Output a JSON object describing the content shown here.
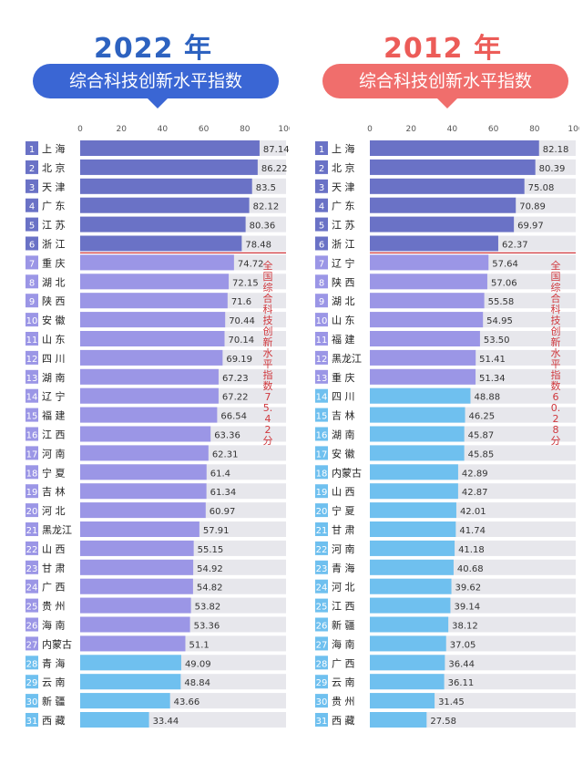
{
  "colors": {
    "blue_title": "#2d62c0",
    "blue_badge": "#3a66d4",
    "red_title": "#ec5c58",
    "red_badge": "#f06e6c",
    "bar_dark": "#6a72c6",
    "bar_purple": "#9b96e6",
    "bar_light": "#6fc0ef",
    "track": "#e7e7ec",
    "note_red": "#d0383d"
  },
  "chart_data": [
    {
      "type": "bar",
      "orientation": "horizontal",
      "title": "2022 年",
      "subtitle": "综合科技创新水平指数",
      "xlim": [
        0,
        100
      ],
      "xticks": [
        "0",
        "20",
        "40",
        "60",
        "80",
        "100"
      ],
      "ranks": [
        "1",
        "2",
        "3",
        "4",
        "5",
        "6",
        "7",
        "8",
        "9",
        "10",
        "11",
        "12",
        "13",
        "14",
        "15",
        "16",
        "17",
        "18",
        "19",
        "20",
        "21",
        "22",
        "23",
        "24",
        "25",
        "26",
        "27",
        "28",
        "29",
        "30",
        "31"
      ],
      "categories": [
        "上 海",
        "北 京",
        "天 津",
        "广 东",
        "江 苏",
        "浙 江",
        "重 庆",
        "湖 北",
        "陕 西",
        "安 徽",
        "山 东",
        "四 川",
        "湖 南",
        "辽 宁",
        "福 建",
        "江 西",
        "河 南",
        "宁 夏",
        "吉 林",
        "河 北",
        "黑龙江",
        "山 西",
        "甘 肃",
        "广 西",
        "贵 州",
        "海 南",
        "内蒙古",
        "青 海",
        "云 南",
        "新 疆",
        "西 藏"
      ],
      "values": [
        87.14,
        86.22,
        83.5,
        82.12,
        80.36,
        78.48,
        74.72,
        72.15,
        71.6,
        70.44,
        70.14,
        69.19,
        67.23,
        67.22,
        66.54,
        63.36,
        62.31,
        61.4,
        61.34,
        60.97,
        57.91,
        55.15,
        54.92,
        54.82,
        53.82,
        53.36,
        51.1,
        49.09,
        48.84,
        43.66,
        33.44
      ],
      "value_labels": [
        "87.14",
        "86.22",
        "83.5",
        "82.12",
        "80.36",
        "78.48",
        "74.72",
        "72.15",
        "71.6",
        "70.44",
        "70.14",
        "69.19",
        "67.23",
        "67.22",
        "66.54",
        "63.36",
        "62.31",
        "61.4",
        "61.34",
        "60.97",
        "57.91",
        "55.15",
        "54.92",
        "54.82",
        "53.82",
        "53.36",
        "51.1",
        "49.09",
        "48.84",
        "43.66",
        "33.44"
      ],
      "groups": [
        "dark",
        "dark",
        "dark",
        "dark",
        "dark",
        "dark",
        "purple",
        "purple",
        "purple",
        "purple",
        "purple",
        "purple",
        "purple",
        "purple",
        "purple",
        "purple",
        "purple",
        "purple",
        "purple",
        "purple",
        "purple",
        "purple",
        "purple",
        "purple",
        "purple",
        "purple",
        "purple",
        "light",
        "light",
        "light",
        "light"
      ],
      "national_index_label": "全国综合科技创新水平指数",
      "national_index_value": "75.42",
      "national_index_unit": "分"
    },
    {
      "type": "bar",
      "orientation": "horizontal",
      "title": "2012 年",
      "subtitle": "综合科技创新水平指数",
      "xlim": [
        0,
        100
      ],
      "xticks": [
        "0",
        "20",
        "40",
        "60",
        "80",
        "100"
      ],
      "ranks": [
        "1",
        "2",
        "3",
        "4",
        "5",
        "6",
        "7",
        "8",
        "9",
        "10",
        "11",
        "12",
        "13",
        "14",
        "15",
        "16",
        "17",
        "18",
        "19",
        "20",
        "21",
        "22",
        "23",
        "24",
        "25",
        "26",
        "27",
        "28",
        "29",
        "30",
        "31"
      ],
      "categories": [
        "上 海",
        "北 京",
        "天 津",
        "广 东",
        "江 苏",
        "浙 江",
        "辽 宁",
        "陕 西",
        "湖 北",
        "山 东",
        "福 建",
        "黑龙江",
        "重 庆",
        "四 川",
        "吉 林",
        "湖 南",
        "安 徽",
        "内蒙古",
        "山 西",
        "宁 夏",
        "甘 肃",
        "河 南",
        "青 海",
        "河 北",
        "江 西",
        "新 疆",
        "海 南",
        "广 西",
        "云 南",
        "贵 州",
        "西 藏"
      ],
      "values": [
        82.18,
        80.39,
        75.08,
        70.89,
        69.97,
        62.37,
        57.64,
        57.06,
        55.58,
        54.95,
        53.5,
        51.41,
        51.34,
        48.88,
        46.25,
        45.87,
        45.85,
        42.89,
        42.87,
        42.01,
        41.74,
        41.18,
        40.68,
        39.62,
        39.14,
        38.12,
        37.05,
        36.44,
        36.11,
        31.45,
        27.58
      ],
      "value_labels": [
        "82.18",
        "80.39",
        "75.08",
        "70.89",
        "69.97",
        "62.37",
        "57.64",
        "57.06",
        "55.58",
        "54.95",
        "53.50",
        "51.41",
        "51.34",
        "48.88",
        "46.25",
        "45.87",
        "45.85",
        "42.89",
        "42.87",
        "42.01",
        "41.74",
        "41.18",
        "40.68",
        "39.62",
        "39.14",
        "38.12",
        "37.05",
        "36.44",
        "36.11",
        "31.45",
        "27.58"
      ],
      "groups": [
        "dark",
        "dark",
        "dark",
        "dark",
        "dark",
        "dark",
        "purple",
        "purple",
        "purple",
        "purple",
        "purple",
        "purple",
        "purple",
        "light",
        "light",
        "light",
        "light",
        "light",
        "light",
        "light",
        "light",
        "light",
        "light",
        "light",
        "light",
        "light",
        "light",
        "light",
        "light",
        "light",
        "light"
      ],
      "national_index_label": "全国综合科技创新水平指数",
      "national_index_value": "60.28",
      "national_index_unit": "分"
    }
  ]
}
